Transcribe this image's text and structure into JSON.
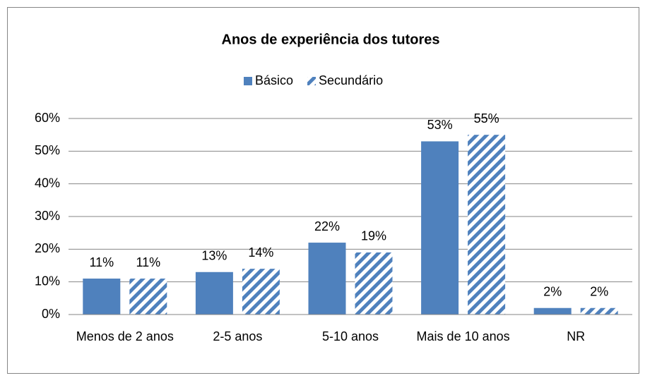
{
  "chart_data": {
    "type": "bar",
    "title": "Anos de experiência dos tutores",
    "categories": [
      "Menos de 2 anos",
      "2-5 anos",
      "5-10 anos",
      "Mais de 10 anos",
      "NR"
    ],
    "series": [
      {
        "name": "Básico",
        "color": "#4f81bd",
        "values": [
          11,
          13,
          22,
          53,
          2
        ],
        "value_labels": [
          "11%",
          "13%",
          "22%",
          "53%",
          "2%"
        ]
      },
      {
        "name": "Secundário",
        "color": "#4f81bd",
        "pattern": "hatch",
        "values": [
          11,
          14,
          19,
          55,
          2
        ],
        "value_labels": [
          "11%",
          "14%",
          "19%",
          "55%",
          "2%"
        ]
      }
    ],
    "ylim": [
      0,
      60
    ],
    "yticks": [
      {
        "value": 0,
        "label": "0%"
      },
      {
        "value": 10,
        "label": "10%"
      },
      {
        "value": 20,
        "label": "20%"
      },
      {
        "value": 30,
        "label": "30%"
      },
      {
        "value": 40,
        "label": "40%"
      },
      {
        "value": 50,
        "label": "50%"
      },
      {
        "value": 60,
        "label": "60%"
      }
    ],
    "grid": true,
    "legend": "top"
  }
}
